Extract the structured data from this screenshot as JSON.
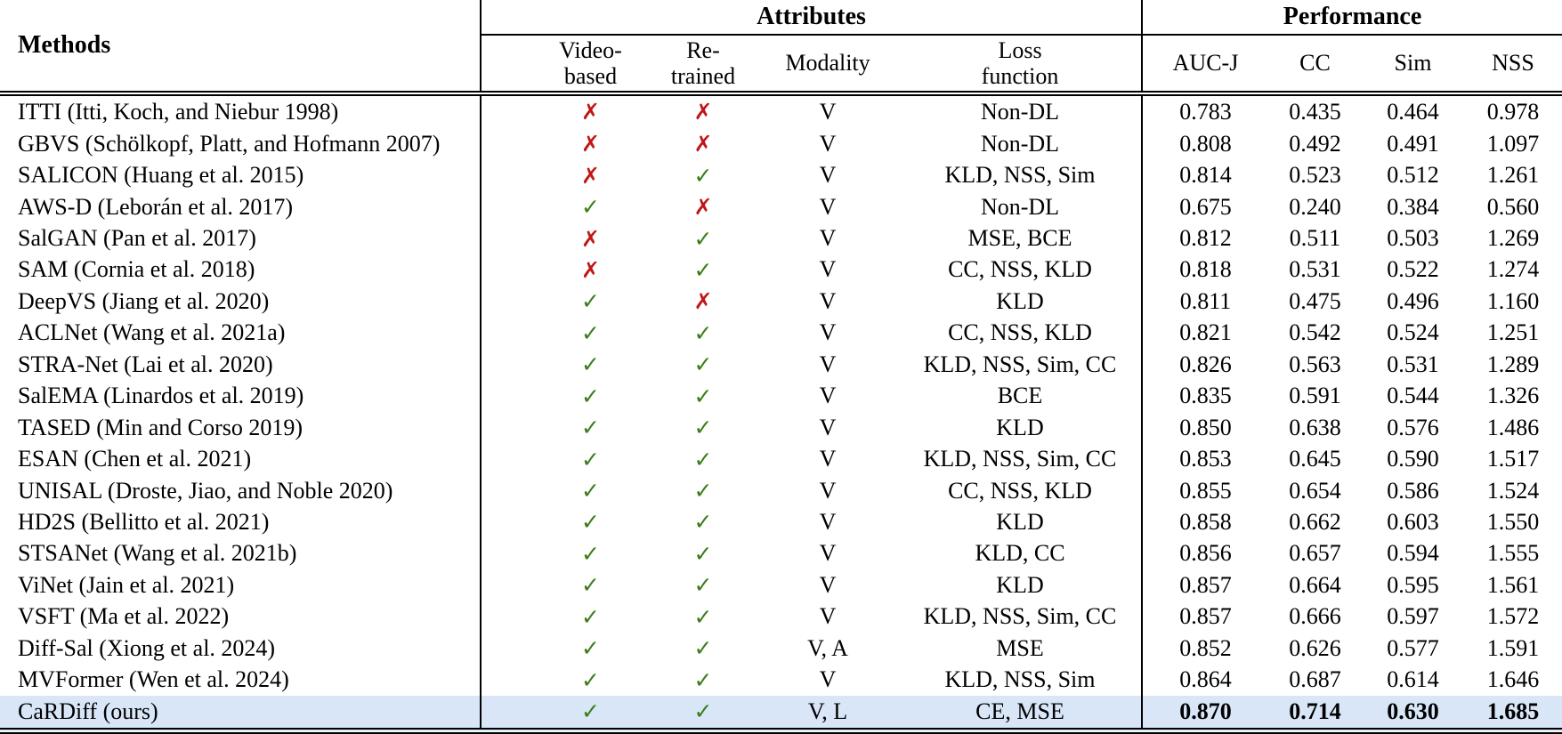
{
  "table": {
    "headers": {
      "methods": "Methods",
      "attributes_group": "Attributes",
      "performance_group": "Performance",
      "video_based_line1": "Video-",
      "video_based_line2": "based",
      "re_trained_line1": "Re-",
      "re_trained_line2": "trained",
      "modality": "Modality",
      "loss_line1": "Loss",
      "loss_line2": "function",
      "auc_j": "AUC-J",
      "cc": "CC",
      "sim": "Sim",
      "nss": "NSS"
    },
    "marks": {
      "check_glyph": "✓",
      "cross_glyph": "✗",
      "check_color": "#3b7d17",
      "cross_color": "#c11616"
    },
    "highlight_color": "#d8e6f8",
    "rows": [
      {
        "method": "ITTI (Itti, Koch, and Niebur 1998)",
        "video": false,
        "retrained": false,
        "modality": "V",
        "loss": "Non-DL",
        "auc_j": "0.783",
        "cc": "0.435",
        "sim": "0.464",
        "nss": "0.978"
      },
      {
        "method": "GBVS (Schölkopf, Platt, and Hofmann 2007)",
        "video": false,
        "retrained": false,
        "modality": "V",
        "loss": "Non-DL",
        "auc_j": "0.808",
        "cc": "0.492",
        "sim": "0.491",
        "nss": "1.097"
      },
      {
        "method": "SALICON (Huang et al. 2015)",
        "video": false,
        "retrained": true,
        "modality": "V",
        "loss": "KLD, NSS, Sim",
        "auc_j": "0.814",
        "cc": "0.523",
        "sim": "0.512",
        "nss": "1.261"
      },
      {
        "method": "AWS-D (Leborán et al. 2017)",
        "video": true,
        "retrained": false,
        "modality": "V",
        "loss": "Non-DL",
        "auc_j": "0.675",
        "cc": "0.240",
        "sim": "0.384",
        "nss": "0.560"
      },
      {
        "method": "SalGAN (Pan et al. 2017)",
        "video": false,
        "retrained": true,
        "modality": "V",
        "loss": "MSE, BCE",
        "auc_j": "0.812",
        "cc": "0.511",
        "sim": "0.503",
        "nss": "1.269"
      },
      {
        "method": "SAM (Cornia et al. 2018)",
        "video": false,
        "retrained": true,
        "modality": "V",
        "loss": "CC, NSS, KLD",
        "auc_j": "0.818",
        "cc": "0.531",
        "sim": "0.522",
        "nss": "1.274"
      },
      {
        "method": "DeepVS (Jiang et al. 2020)",
        "video": true,
        "retrained": false,
        "modality": "V",
        "loss": "KLD",
        "auc_j": "0.811",
        "cc": "0.475",
        "sim": "0.496",
        "nss": "1.160"
      },
      {
        "method": "ACLNet (Wang et al. 2021a)",
        "video": true,
        "retrained": true,
        "modality": "V",
        "loss": "CC, NSS, KLD",
        "auc_j": "0.821",
        "cc": "0.542",
        "sim": "0.524",
        "nss": "1.251"
      },
      {
        "method": "STRA-Net (Lai et al. 2020)",
        "video": true,
        "retrained": true,
        "modality": "V",
        "loss": "KLD, NSS, Sim, CC",
        "auc_j": "0.826",
        "cc": "0.563",
        "sim": "0.531",
        "nss": "1.289"
      },
      {
        "method": "SalEMA (Linardos et al. 2019)",
        "video": true,
        "retrained": true,
        "modality": "V",
        "loss": "BCE",
        "auc_j": "0.835",
        "cc": "0.591",
        "sim": "0.544",
        "nss": "1.326"
      },
      {
        "method": "TASED (Min and Corso 2019)",
        "video": true,
        "retrained": true,
        "modality": "V",
        "loss": "KLD",
        "auc_j": "0.850",
        "cc": "0.638",
        "sim": "0.576",
        "nss": "1.486"
      },
      {
        "method": "ESAN (Chen et al. 2021)",
        "video": true,
        "retrained": true,
        "modality": "V",
        "loss": "KLD, NSS, Sim, CC",
        "auc_j": "0.853",
        "cc": "0.645",
        "sim": "0.590",
        "nss": "1.517"
      },
      {
        "method": "UNISAL (Droste, Jiao, and Noble 2020)",
        "video": true,
        "retrained": true,
        "modality": "V",
        "loss": "CC, NSS, KLD",
        "auc_j": "0.855",
        "cc": "0.654",
        "sim": "0.586",
        "nss": "1.524"
      },
      {
        "method": "HD2S (Bellitto et al. 2021)",
        "video": true,
        "retrained": true,
        "modality": "V",
        "loss": "KLD",
        "auc_j": "0.858",
        "cc": "0.662",
        "sim": "0.603",
        "nss": "1.550"
      },
      {
        "method": "STSANet (Wang et al. 2021b)",
        "video": true,
        "retrained": true,
        "modality": "V",
        "loss": "KLD, CC",
        "auc_j": "0.856",
        "cc": "0.657",
        "sim": "0.594",
        "nss": "1.555"
      },
      {
        "method": "ViNet (Jain et al. 2021)",
        "video": true,
        "retrained": true,
        "modality": "V",
        "loss": "KLD",
        "auc_j": "0.857",
        "cc": "0.664",
        "sim": "0.595",
        "nss": "1.561"
      },
      {
        "method": "VSFT (Ma et al. 2022)",
        "video": true,
        "retrained": true,
        "modality": "V",
        "loss": "KLD, NSS, Sim, CC",
        "auc_j": "0.857",
        "cc": "0.666",
        "sim": "0.597",
        "nss": "1.572"
      },
      {
        "method": "Diff-Sal (Xiong et al. 2024)",
        "video": true,
        "retrained": true,
        "modality": "V, A",
        "loss": "MSE",
        "auc_j": "0.852",
        "cc": "0.626",
        "sim": "0.577",
        "nss": "1.591"
      },
      {
        "method": "MVFormer (Wen et al. 2024)",
        "video": true,
        "retrained": true,
        "modality": "V",
        "loss": "KLD, NSS, Sim",
        "auc_j": "0.864",
        "cc": "0.687",
        "sim": "0.614",
        "nss": "1.646"
      },
      {
        "method": "CaRDiff (ours)",
        "video": true,
        "retrained": true,
        "modality": "V, L",
        "loss": "CE, MSE",
        "auc_j": "0.870",
        "cc": "0.714",
        "sim": "0.630",
        "nss": "1.685",
        "highlight": true
      }
    ]
  }
}
